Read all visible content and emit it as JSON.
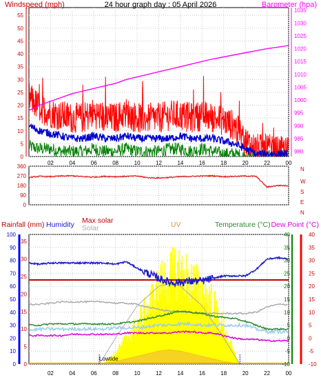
{
  "header": {
    "title": "24 hour graph day : 05 April 2026",
    "left_label": "Windspeed (mph)",
    "right_label": "Barometer (hpa)"
  },
  "colors": {
    "wind": "#ff0000",
    "gust_area": "#ff0000",
    "avg_wind": "#0000cc",
    "direction_low": "#008000",
    "barometer": "#ff00ff",
    "wind_dir": "#dd2222",
    "humidity": "#1c1ccc",
    "max_solar": "#999999",
    "solar": "#ffff00",
    "uv": "#e69138",
    "temperature": "#2e8b2e",
    "dew_point": "#dd00dd",
    "rain": "#c00000",
    "rain_axis": "#0000ff",
    "dew_axis": "#ff0000",
    "temp_axis": "#008000"
  },
  "chart_data": [
    {
      "type": "line",
      "name": "wind-barometer",
      "x_ticks": [
        "02",
        "04",
        "06",
        "08",
        "10",
        "12",
        "14",
        "16",
        "18",
        "20",
        "22",
        "00"
      ],
      "y_left_ticks": [
        "0",
        "5",
        "10",
        "15",
        "20",
        "25",
        "30",
        "35",
        "40",
        "45",
        "50",
        "55"
      ],
      "y_left_range": [
        0,
        58
      ],
      "y_right_ticks": [
        "980",
        "985",
        "990",
        "995",
        "1000",
        "1005",
        "1010",
        "1015",
        "1020",
        "1025",
        "1030",
        "1035"
      ],
      "y_right_range": [
        978,
        1036
      ],
      "barometer": {
        "x": [
          0,
          1,
          2,
          3,
          4,
          5,
          6,
          7,
          8,
          9,
          10,
          11,
          12,
          13,
          14,
          15,
          16,
          17,
          18,
          19,
          20,
          21,
          22,
          23,
          24
        ],
        "y": [
          996,
          998,
          999.5,
          1001,
          1002.5,
          1003.5,
          1004.5,
          1005.5,
          1006.5,
          1008,
          1009,
          1010,
          1011,
          1012,
          1013,
          1014,
          1015,
          1016,
          1016.8,
          1017.6,
          1018.4,
          1019.2,
          1020,
          1020.6,
          1021.2
        ]
      },
      "gust_hourly": {
        "x": [
          0,
          1,
          2,
          3,
          4,
          5,
          6,
          7,
          8,
          9,
          10,
          11,
          12,
          13,
          14,
          15,
          16,
          17,
          18,
          19,
          20,
          21,
          22,
          23,
          24
        ],
        "y": [
          23,
          19,
          17,
          16,
          15,
          15,
          17,
          15,
          15,
          17,
          15,
          15,
          15,
          16,
          16,
          15,
          16,
          15,
          14,
          12,
          6,
          3,
          3,
          2,
          2
        ]
      },
      "avg_hourly": {
        "x": [
          0,
          1,
          2,
          3,
          4,
          5,
          6,
          7,
          8,
          9,
          10,
          11,
          12,
          13,
          14,
          15,
          16,
          17,
          18,
          19,
          20,
          21,
          22,
          23,
          24
        ],
        "y": [
          12,
          10,
          9,
          8,
          7,
          7,
          8,
          7,
          7,
          8,
          7,
          7,
          7,
          7,
          8,
          7,
          7,
          7,
          6,
          5,
          3,
          1,
          1,
          1,
          1
        ]
      },
      "low_hourly": {
        "x": [
          0,
          1,
          2,
          3,
          4,
          5,
          6,
          7,
          8,
          9,
          10,
          11,
          12,
          13,
          14,
          15,
          16,
          17,
          18,
          19,
          20,
          21,
          22,
          23,
          24
        ],
        "y": [
          4,
          3,
          3,
          2,
          2,
          2,
          3,
          2,
          2,
          3,
          2,
          2,
          2,
          3,
          3,
          2,
          3,
          2,
          1,
          1,
          0,
          0,
          0,
          0,
          0
        ]
      }
    },
    {
      "type": "line",
      "name": "wind-direction",
      "y_ticks": [
        "0",
        "90",
        "180",
        "270",
        "360"
      ],
      "y_range": [
        0,
        360
      ],
      "compass": [
        "N",
        "W",
        "S",
        "E",
        "N"
      ],
      "direction": {
        "x": [
          0,
          1,
          2,
          3,
          4,
          5,
          6,
          7,
          8,
          9,
          10,
          11,
          12,
          13,
          14,
          15,
          16,
          17,
          18,
          19,
          20,
          21,
          22,
          23,
          24
        ],
        "y": [
          255,
          265,
          262,
          268,
          270,
          262,
          258,
          265,
          262,
          265,
          268,
          252,
          250,
          255,
          262,
          265,
          268,
          270,
          262,
          265,
          268,
          265,
          165,
          180,
          178
        ]
      }
    },
    {
      "type": "line",
      "name": "climate",
      "labels": {
        "rainfall": "Rainfall (mm)",
        "humidity": "Humidity",
        "max_solar": "Max solar",
        "solar": "Solar",
        "uv": "UV",
        "temperature": "Temperature (°C)",
        "dew_point": "Dew Point (°C)",
        "lowtide": "Lowtide"
      },
      "humidity_ticks": [
        "0",
        "10",
        "20",
        "30",
        "40",
        "50",
        "60",
        "70",
        "80",
        "90",
        "100"
      ],
      "rain_ticks": [
        "0",
        "5",
        "10",
        "15",
        "20",
        "25",
        "30",
        "35"
      ],
      "temp_ticks": [
        "-10",
        "-5",
        "0",
        "5",
        "10",
        "15",
        "20",
        "25",
        "30",
        "35",
        "40"
      ],
      "humidity": {
        "x": [
          0,
          1,
          2,
          3,
          4,
          5,
          6,
          7,
          8,
          9,
          10,
          11,
          12,
          13,
          14,
          15,
          16,
          17,
          18,
          19,
          20,
          21,
          22,
          23,
          24
        ],
        "y": [
          78,
          77,
          78,
          78,
          78,
          78,
          78,
          78,
          77,
          79,
          74,
          70,
          66,
          63,
          63,
          64,
          64,
          66,
          68,
          68,
          68,
          73,
          81,
          82,
          81
        ]
      },
      "rain": {
        "x": [
          0,
          24
        ],
        "y": [
          24,
          24
        ]
      },
      "temperature": {
        "x": [
          0,
          1,
          2,
          3,
          4,
          5,
          6,
          7,
          8,
          9,
          10,
          11,
          12,
          13,
          14,
          15,
          16,
          17,
          18,
          19,
          20,
          21,
          22,
          23,
          24
        ],
        "y": [
          5,
          5,
          5.5,
          5.5,
          5.5,
          5.5,
          5.5,
          5.5,
          5.5,
          6,
          6.5,
          7.5,
          8.5,
          9.5,
          10.5,
          10,
          9.5,
          8.5,
          8,
          7.5,
          6.5,
          5,
          3.5,
          3.5,
          3.5
        ]
      },
      "dew_point": {
        "x": [
          0,
          1,
          2,
          3,
          4,
          5,
          6,
          7,
          8,
          9,
          10,
          11,
          12,
          13,
          14,
          15,
          16,
          17,
          18,
          19,
          20,
          21,
          22,
          23,
          24
        ],
        "y": [
          1,
          1,
          1,
          1,
          1.5,
          1.5,
          1.5,
          1.5,
          1.5,
          2,
          2,
          2,
          2,
          2,
          2.5,
          2.5,
          2,
          2,
          1,
          0,
          -0.5,
          -0.5,
          -1,
          -1,
          -1
        ]
      },
      "max_solar_line": {
        "x": [
          0,
          1,
          2,
          3,
          4,
          5,
          6,
          7,
          8,
          9,
          10,
          11,
          12,
          13,
          14,
          15,
          16,
          17,
          18,
          19,
          20,
          21,
          22,
          23,
          24
        ],
        "y": [
          13,
          13,
          13.5,
          14,
          14,
          14,
          14,
          14,
          13.5,
          13.5,
          13,
          12,
          11,
          10.5,
          10,
          10,
          9.5,
          9.5,
          9.5,
          9.5,
          9.5,
          10,
          12,
          13,
          13
        ]
      },
      "light_blue_line": {
        "x": [
          0,
          1,
          2,
          3,
          4,
          5,
          6,
          7,
          8,
          9,
          10,
          11,
          12,
          13,
          14,
          15,
          16,
          17,
          18,
          19,
          20,
          21,
          22,
          23,
          24
        ],
        "y": [
          3,
          3.5,
          3.5,
          3.5,
          3.5,
          3.5,
          3.5,
          3.5,
          4,
          4,
          4,
          4.5,
          5,
          5,
          5.5,
          5.5,
          5,
          5,
          5,
          5,
          5,
          3.5,
          2.5,
          2.5,
          2.5
        ]
      },
      "solar": {
        "x": [
          6.5,
          7,
          8,
          9,
          10,
          11,
          12,
          13,
          14,
          15,
          16,
          17,
          18,
          19,
          19.5
        ],
        "y": [
          0,
          2,
          10,
          25,
          38,
          55,
          75,
          85,
          90,
          80,
          70,
          60,
          35,
          10,
          0
        ]
      },
      "max_solar_envelope": {
        "x": [
          6.5,
          8,
          10,
          12,
          13,
          14,
          16,
          18,
          19.5
        ],
        "y": [
          0,
          20,
          45,
          60,
          62,
          60,
          45,
          20,
          0
        ]
      },
      "uv": {
        "x": [
          6.5,
          8,
          10,
          12,
          13,
          14,
          16,
          18,
          19.5
        ],
        "y": [
          0,
          1,
          3,
          5,
          5.5,
          5,
          3,
          1,
          0
        ]
      }
    }
  ]
}
